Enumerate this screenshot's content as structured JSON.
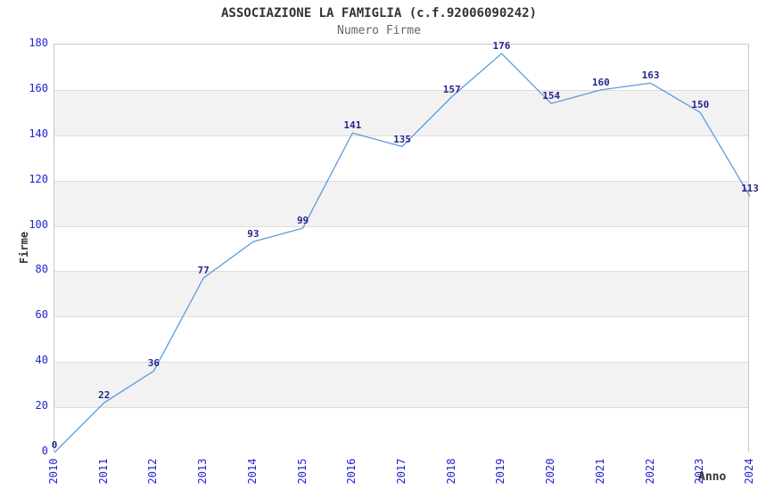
{
  "header": {
    "title": "ASSOCIAZIONE LA FAMIGLIA (c.f.92006090242)",
    "subtitle": "Numero Firme"
  },
  "chart_data": {
    "type": "line",
    "title": "ASSOCIAZIONE LA FAMIGLIA (c.f.92006090242)",
    "subtitle": "Numero Firme",
    "xlabel": "Anno",
    "ylabel": "Firme",
    "categories": [
      "2010",
      "2011",
      "2012",
      "2013",
      "2014",
      "2015",
      "2016",
      "2017",
      "2018",
      "2019",
      "2020",
      "2021",
      "2022",
      "2023",
      "2024"
    ],
    "series": [
      {
        "name": "Numero Firme",
        "values": [
          0,
          22,
          36,
          77,
          93,
          99,
          141,
          135,
          157,
          176,
          154,
          160,
          163,
          150,
          113
        ]
      }
    ],
    "ylim": [
      0,
      180
    ],
    "ytick_step": 20,
    "yticks": [
      0,
      20,
      40,
      60,
      80,
      100,
      120,
      140,
      160,
      180
    ],
    "grid": "horizontal-bands",
    "legend_position": "none",
    "data_labels_visible": true,
    "colors": {
      "line": "#5f9bdc",
      "tick_label": "#2323cf",
      "data_label": "#26268c",
      "band_gray": "#f2f2f2",
      "band_white": "#ffffff",
      "gridline": "#dcdcdc",
      "plot_border": "#c9c9c9",
      "title_text": "#333333",
      "subtitle_text": "#666666",
      "axis_title_text": "#333333"
    }
  }
}
